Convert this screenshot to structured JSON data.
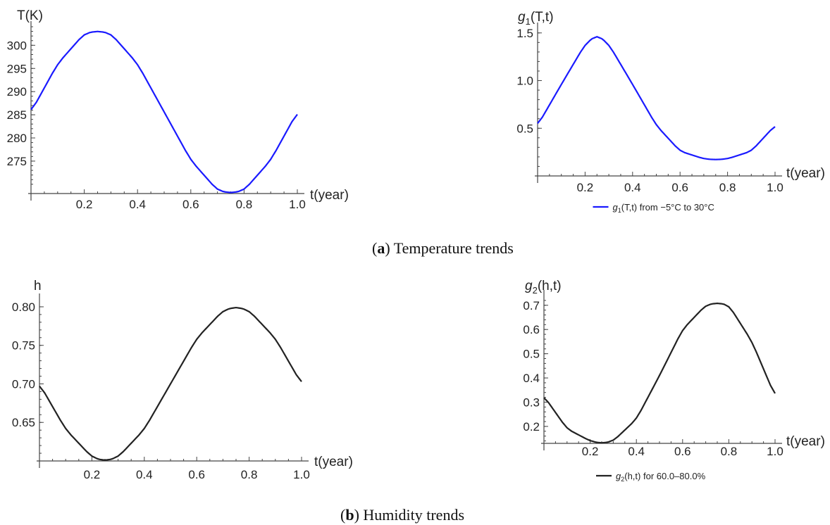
{
  "captions": {
    "a": {
      "letter": "a",
      "text": " Temperature trends"
    },
    "b": {
      "letter": "b",
      "text": " Humidity trends"
    }
  },
  "chart_data": [
    {
      "type": "line",
      "ylabel": "T(K)",
      "xlabel": "t(year)",
      "xlim": [
        0,
        1
      ],
      "ylim": [
        268,
        304
      ],
      "x_ticks": [
        "0.2",
        "0.4",
        "0.6",
        "0.8",
        "1.0"
      ],
      "y_ticks": [
        "275",
        "280",
        "285",
        "290",
        "295",
        "300"
      ],
      "color": "#1a1aff",
      "series": [
        {
          "x": [
            0,
            0.1,
            0.2,
            0.25,
            0.3,
            0.4,
            0.5,
            0.6,
            0.7,
            0.75,
            0.8,
            0.9,
            1.0
          ],
          "y": [
            285.6,
            296.0,
            302.5,
            303.1,
            302.5,
            296.0,
            285.6,
            275.2,
            268.7,
            268.1,
            268.7,
            275.2,
            285.6
          ]
        }
      ]
    },
    {
      "type": "line",
      "ylabel": "g",
      "ylabel_sub": "1",
      "ylabel_rest": "(T,t)",
      "xlabel": "t(year)",
      "xlim": [
        0,
        1
      ],
      "ylim": [
        0,
        1.55
      ],
      "x_ticks": [
        "0.2",
        "0.4",
        "0.6",
        "0.8",
        "1.0"
      ],
      "y_ticks": [
        "0.5",
        "1.0",
        "1.5"
      ],
      "color": "#1a1aff",
      "legend": {
        "prefix": "g",
        "sub": "1",
        "rest": "(T,t) from −5°C to 30°C",
        "position": "bottom"
      },
      "series": [
        {
          "x": [
            0,
            0.1,
            0.2,
            0.25,
            0.3,
            0.4,
            0.5,
            0.6,
            0.7,
            0.75,
            0.8,
            0.9,
            1.0
          ],
          "y": [
            0.53,
            0.96,
            1.38,
            1.48,
            1.38,
            0.96,
            0.53,
            0.26,
            0.18,
            0.17,
            0.18,
            0.26,
            0.53
          ]
        }
      ]
    },
    {
      "type": "line",
      "ylabel": "h",
      "xlabel": "t(year)",
      "xlim": [
        0,
        1
      ],
      "ylim": [
        0.6,
        0.81
      ],
      "x_ticks": [
        "0.2",
        "0.4",
        "0.6",
        "0.8",
        "1.0"
      ],
      "y_ticks": [
        "0.65",
        "0.70",
        "0.75",
        "0.80"
      ],
      "color": "#222222",
      "series": [
        {
          "x": [
            0,
            0.1,
            0.2,
            0.25,
            0.3,
            0.4,
            0.5,
            0.6,
            0.7,
            0.75,
            0.8,
            0.9,
            1.0
          ],
          "y": [
            0.7,
            0.641,
            0.605,
            0.6,
            0.605,
            0.641,
            0.7,
            0.759,
            0.795,
            0.8,
            0.795,
            0.759,
            0.7
          ]
        }
      ]
    },
    {
      "type": "line",
      "ylabel": "g",
      "ylabel_sub": "2",
      "ylabel_rest": "(h,t)",
      "xlabel": "t(year)",
      "xlim": [
        0,
        1
      ],
      "ylim": [
        0.13,
        0.74
      ],
      "x_ticks": [
        "0.2",
        "0.4",
        "0.6",
        "0.8",
        "1.0"
      ],
      "y_ticks": [
        "0.2",
        "0.3",
        "0.4",
        "0.5",
        "0.6",
        "0.7"
      ],
      "color": "#222222",
      "legend": {
        "prefix": "g",
        "sub": "2",
        "rest": "(h,t) for 60.0–80.0%",
        "position": "bottom"
      },
      "series": [
        {
          "x": [
            0,
            0.1,
            0.2,
            0.25,
            0.3,
            0.4,
            0.5,
            0.6,
            0.7,
            0.75,
            0.8,
            0.9,
            1.0
          ],
          "y": [
            0.325,
            0.19,
            0.14,
            0.13,
            0.14,
            0.23,
            0.41,
            0.6,
            0.7,
            0.71,
            0.7,
            0.55,
            0.325
          ]
        }
      ]
    }
  ]
}
